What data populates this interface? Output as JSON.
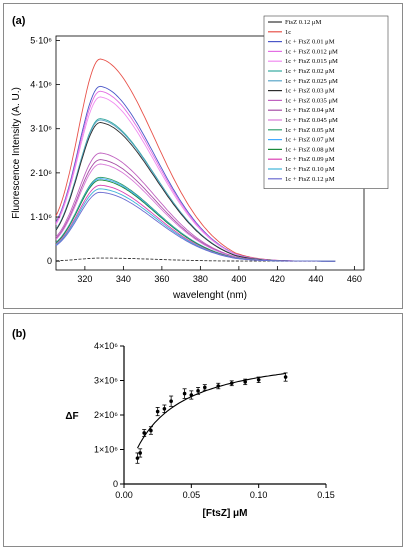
{
  "chart_data": [
    {
      "panel": "(a)",
      "type": "line",
      "xlabel": "wavelenght (nm)",
      "ylabel": "Fluorescence Intensity (A. U.)",
      "xlim": [
        305,
        465
      ],
      "ylim": [
        -200000,
        5100000
      ],
      "x_ticks": [
        320,
        340,
        360,
        380,
        400,
        420,
        440,
        460
      ],
      "y_ticks": [
        {
          "v": 0,
          "label": "0"
        },
        {
          "v": 1000000,
          "label": "1·10⁶"
        },
        {
          "v": 2000000,
          "label": "2·10⁶"
        },
        {
          "v": 3000000,
          "label": "3·10⁶"
        },
        {
          "v": 4000000,
          "label": "4·10⁶"
        },
        {
          "v": 5000000,
          "label": "5·10⁶"
        }
      ],
      "legend_position": "top-right",
      "series": [
        {
          "name": "FtsZ 0.12 μM",
          "color": "#333333",
          "peak": 70000
        },
        {
          "name": "1c",
          "color": "#e8524a",
          "peak": 4580000
        },
        {
          "name": "1c + FtsZ 0.01 μM",
          "color": "#4b57c8",
          "peak": 3960000
        },
        {
          "name": "1c + FtsZ 0.012 μM",
          "color": "#e36ee3",
          "peak": 3850000
        },
        {
          "name": "1c + FtsZ 0.015 μM",
          "color": "#f08cf0",
          "peak": 3720000
        },
        {
          "name": "1c + FtsZ 0.02 μM",
          "color": "#36a9a0",
          "peak": 3230000
        },
        {
          "name": "1c + FtsZ 0.025 μM",
          "color": "#5aa6c8",
          "peak": 3200000
        },
        {
          "name": "1c + FtsZ 0.03 μM",
          "color": "#2d2d2d",
          "peak": 3140000
        },
        {
          "name": "1c + FtsZ 0.035 μM",
          "color": "#c062c0",
          "peak": 2450000
        },
        {
          "name": "1c + FtsZ 0.04 μM",
          "color": "#a64ea6",
          "peak": 2300000
        },
        {
          "name": "1c + FtsZ 0.045 μM",
          "color": "#d87ad8",
          "peak": 2200000
        },
        {
          "name": "1c + FtsZ 0.05 μM",
          "color": "#34a070",
          "peak": 1900000
        },
        {
          "name": "1c + FtsZ 0.07 μM",
          "color": "#44aaff",
          "peak": 1870000
        },
        {
          "name": "1c + FtsZ 0.08 μM",
          "color": "#1b8a3c",
          "peak": 1840000
        },
        {
          "name": "1c + FtsZ 0.09 μM",
          "color": "#db3fb2",
          "peak": 1720000
        },
        {
          "name": "1c + FtsZ 0.10 μM",
          "color": "#3fb4d9",
          "peak": 1640000
        },
        {
          "name": "1c + FtsZ 0.12 μM",
          "color": "#6c6cd0",
          "peak": 1560000
        }
      ]
    },
    {
      "panel": "(b)",
      "type": "scatter",
      "xlabel": "[FtsZ] μM",
      "ylabel": "ΔF",
      "xlim": [
        0,
        0.15
      ],
      "ylim": [
        0,
        4000000
      ],
      "x_ticks": [
        "0.00",
        "0.05",
        "0.10",
        "0.15"
      ],
      "y_ticks": [
        {
          "v": 0,
          "label": "0"
        },
        {
          "v": 1000000,
          "label": "1×10⁶"
        },
        {
          "v": 2000000,
          "label": "2×10⁶"
        },
        {
          "v": 3000000,
          "label": "3×10⁶"
        },
        {
          "v": 4000000,
          "label": "4×10⁶"
        }
      ],
      "points": [
        {
          "x": 0.01,
          "y": 750000,
          "err": 150000
        },
        {
          "x": 0.012,
          "y": 900000,
          "err": 120000
        },
        {
          "x": 0.015,
          "y": 1480000,
          "err": 100000
        },
        {
          "x": 0.02,
          "y": 1550000,
          "err": 110000
        },
        {
          "x": 0.025,
          "y": 2100000,
          "err": 120000
        },
        {
          "x": 0.03,
          "y": 2180000,
          "err": 110000
        },
        {
          "x": 0.035,
          "y": 2400000,
          "err": 150000
        },
        {
          "x": 0.045,
          "y": 2620000,
          "err": 140000
        },
        {
          "x": 0.05,
          "y": 2580000,
          "err": 120000
        },
        {
          "x": 0.055,
          "y": 2700000,
          "err": 100000
        },
        {
          "x": 0.06,
          "y": 2800000,
          "err": 80000
        },
        {
          "x": 0.07,
          "y": 2840000,
          "err": 80000
        },
        {
          "x": 0.08,
          "y": 2920000,
          "err": 70000
        },
        {
          "x": 0.09,
          "y": 2960000,
          "err": 80000
        },
        {
          "x": 0.1,
          "y": 3020000,
          "err": 80000
        },
        {
          "x": 0.12,
          "y": 3100000,
          "err": 120000
        }
      ],
      "fit": {
        "bmax": 3950000,
        "kd": 0.028
      }
    }
  ]
}
